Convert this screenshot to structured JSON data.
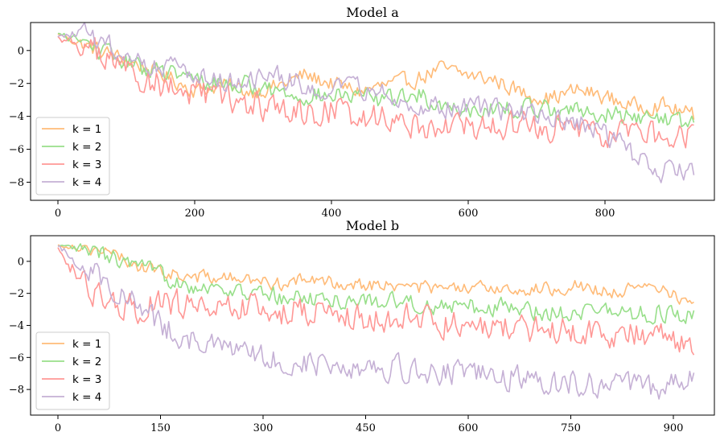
{
  "chart_data": [
    {
      "type": "line",
      "title": "Model a",
      "xlabel": "",
      "ylabel": "",
      "xlim": [
        -40,
        960
      ],
      "ylim": [
        -9.1,
        1.7
      ],
      "xticks": [
        0,
        200,
        400,
        600,
        800
      ],
      "yticks": [
        0,
        -2,
        -4,
        -6,
        -8
      ],
      "x_max": 932,
      "legend_position": "lower-left",
      "grid": false,
      "series": [
        {
          "name": "k = 1",
          "color": "#ffbb78",
          "x": [
            0,
            40,
            80,
            120,
            160,
            200,
            240,
            280,
            320,
            360,
            400,
            440,
            480,
            520,
            560,
            600,
            640,
            680,
            720,
            760,
            800,
            840,
            880,
            932
          ],
          "values": [
            1.0,
            0.3,
            -0.3,
            -0.9,
            -1.6,
            -2.4,
            -2.1,
            -2.5,
            -2.2,
            -1.5,
            -2.0,
            -2.5,
            -2.1,
            -1.8,
            -1.1,
            -1.5,
            -1.8,
            -2.6,
            -2.9,
            -2.4,
            -2.8,
            -3.4,
            -3.3,
            -4.0
          ]
        },
        {
          "name": "k = 2",
          "color": "#98df8a",
          "x": [
            0,
            40,
            80,
            120,
            160,
            200,
            240,
            280,
            320,
            360,
            400,
            440,
            480,
            520,
            560,
            600,
            640,
            680,
            720,
            760,
            800,
            840,
            880,
            932
          ],
          "values": [
            1.0,
            0.5,
            -0.4,
            -1.0,
            -1.4,
            -1.8,
            -2.0,
            -2.1,
            -2.5,
            -2.7,
            -2.8,
            -2.8,
            -3.0,
            -2.6,
            -3.3,
            -3.5,
            -3.6,
            -3.5,
            -3.5,
            -3.7,
            -3.8,
            -4.1,
            -4.0,
            -4.5
          ]
        },
        {
          "name": "k = 3",
          "color": "#ff9896",
          "x": [
            0,
            40,
            80,
            120,
            160,
            200,
            240,
            280,
            320,
            360,
            400,
            440,
            480,
            520,
            560,
            600,
            640,
            680,
            720,
            760,
            800,
            840,
            880,
            932
          ],
          "values": [
            0.8,
            0.2,
            -0.7,
            -1.6,
            -2.2,
            -2.6,
            -3.0,
            -3.3,
            -3.6,
            -3.8,
            -3.6,
            -4.0,
            -4.0,
            -4.4,
            -4.7,
            -4.5,
            -4.8,
            -4.6,
            -4.7,
            -4.9,
            -5.0,
            -4.8,
            -5.1,
            -5.3
          ]
        },
        {
          "name": "k = 4",
          "color": "#c5b0d5",
          "x": [
            0,
            40,
            80,
            120,
            160,
            200,
            240,
            280,
            320,
            360,
            400,
            440,
            480,
            520,
            560,
            600,
            640,
            680,
            720,
            760,
            800,
            840,
            880,
            932
          ],
          "values": [
            0.8,
            1.1,
            0.1,
            -0.6,
            -1.0,
            -1.3,
            -1.7,
            -2.0,
            -1.5,
            -2.1,
            -2.5,
            -2.3,
            -2.7,
            -3.2,
            -3.6,
            -3.3,
            -3.6,
            -3.8,
            -4.0,
            -4.3,
            -5.0,
            -6.3,
            -7.3,
            -7.4
          ]
        }
      ]
    },
    {
      "type": "line",
      "title": "Model b",
      "xlabel": "",
      "ylabel": "",
      "xlim": [
        -40,
        960
      ],
      "ylim": [
        -9.6,
        1.6
      ],
      "xticks": [
        0,
        150,
        300,
        450,
        600,
        750,
        900
      ],
      "yticks": [
        0,
        -2,
        -4,
        -6,
        -8
      ],
      "x_max": 932,
      "legend_position": "lower-left",
      "grid": false,
      "series": [
        {
          "name": "k = 1",
          "color": "#ffbb78",
          "x": [
            0,
            40,
            80,
            120,
            160,
            200,
            240,
            280,
            320,
            360,
            400,
            440,
            480,
            520,
            560,
            600,
            640,
            680,
            720,
            760,
            800,
            840,
            880,
            932
          ],
          "values": [
            1.0,
            0.9,
            0.4,
            -0.3,
            -0.7,
            -1.0,
            -1.0,
            -1.2,
            -1.4,
            -1.2,
            -1.3,
            -1.4,
            -1.5,
            -1.6,
            -1.7,
            -1.8,
            -1.6,
            -1.8,
            -1.7,
            -1.5,
            -1.9,
            -1.8,
            -1.7,
            -2.6
          ]
        },
        {
          "name": "k = 2",
          "color": "#98df8a",
          "x": [
            0,
            40,
            80,
            120,
            160,
            200,
            240,
            280,
            320,
            360,
            400,
            440,
            480,
            520,
            560,
            600,
            640,
            680,
            720,
            760,
            800,
            840,
            880,
            932
          ],
          "values": [
            0.9,
            0.7,
            0.2,
            -0.5,
            -1.0,
            -1.5,
            -1.7,
            -2.0,
            -2.2,
            -2.3,
            -2.4,
            -2.5,
            -2.4,
            -2.6,
            -2.8,
            -2.9,
            -2.8,
            -3.0,
            -3.2,
            -3.0,
            -3.1,
            -3.3,
            -3.2,
            -3.5
          ]
        },
        {
          "name": "k = 3",
          "color": "#ff9896",
          "x": [
            0,
            40,
            80,
            120,
            160,
            200,
            240,
            280,
            320,
            360,
            400,
            440,
            480,
            520,
            560,
            600,
            640,
            680,
            720,
            760,
            800,
            840,
            880,
            932
          ],
          "values": [
            0.8,
            -1.5,
            -3.0,
            -2.8,
            -2.6,
            -2.9,
            -2.7,
            -3.0,
            -3.2,
            -3.1,
            -3.4,
            -3.5,
            -3.7,
            -3.5,
            -3.9,
            -4.0,
            -4.2,
            -4.1,
            -4.3,
            -4.2,
            -4.4,
            -4.6,
            -4.5,
            -5.5
          ]
        },
        {
          "name": "k = 4",
          "color": "#c5b0d5",
          "x": [
            0,
            40,
            80,
            120,
            160,
            200,
            240,
            280,
            320,
            360,
            400,
            440,
            480,
            520,
            560,
            600,
            640,
            680,
            720,
            760,
            800,
            840,
            880,
            932
          ],
          "values": [
            0.9,
            -0.3,
            -1.5,
            -3.0,
            -4.2,
            -5.0,
            -5.5,
            -5.8,
            -6.1,
            -6.3,
            -6.4,
            -6.5,
            -6.6,
            -6.8,
            -6.9,
            -7.0,
            -7.2,
            -7.3,
            -7.5,
            -7.6,
            -7.7,
            -7.8,
            -7.9,
            -7.1
          ]
        }
      ]
    }
  ]
}
